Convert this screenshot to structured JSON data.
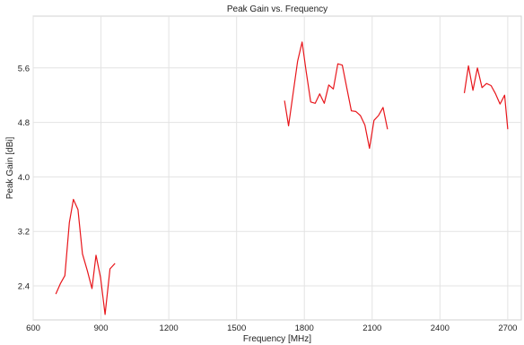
{
  "chart_data": {
    "type": "line",
    "title": "Peak Gain vs. Frequency",
    "xlabel": "Frequency [MHz]",
    "ylabel": "Peak Gain [dBi]",
    "xlim": [
      600,
      2760
    ],
    "ylim": [
      1.9,
      6.36
    ],
    "xticks": [
      600,
      900,
      1200,
      1500,
      1800,
      2100,
      2400,
      2700
    ],
    "yticks": [
      2.4,
      3.2,
      4.0,
      4.8,
      5.6
    ],
    "xtick_labels": [
      "600",
      "900",
      "1200",
      "1500",
      "1800",
      "2100",
      "2400",
      "2700"
    ],
    "ytick_labels": [
      "2.4",
      "3.2",
      "4.0",
      "4.8",
      "5.6"
    ],
    "grid": true,
    "line_color": "#e8161b",
    "series": [
      {
        "segments": [
          [
            [
              700,
              2.28
            ],
            [
              720,
              2.43
            ],
            [
              740,
              2.55
            ],
            [
              760,
              3.33
            ],
            [
              778,
              3.67
            ],
            [
              798,
              3.52
            ],
            [
              818,
              2.87
            ],
            [
              840,
              2.62
            ],
            [
              860,
              2.36
            ],
            [
              878,
              2.85
            ],
            [
              898,
              2.52
            ],
            [
              918,
              1.98
            ],
            [
              940,
              2.65
            ],
            [
              962,
              2.73
            ]
          ],
          [
            [
              1712,
              5.12
            ],
            [
              1730,
              4.75
            ],
            [
              1750,
              5.22
            ],
            [
              1770,
              5.7
            ],
            [
              1790,
              5.98
            ],
            [
              1808,
              5.55
            ],
            [
              1828,
              5.1
            ],
            [
              1848,
              5.08
            ],
            [
              1868,
              5.22
            ],
            [
              1888,
              5.08
            ],
            [
              1908,
              5.35
            ],
            [
              1928,
              5.29
            ],
            [
              1948,
              5.66
            ],
            [
              1968,
              5.64
            ],
            [
              1988,
              5.3
            ],
            [
              2008,
              4.97
            ],
            [
              2028,
              4.96
            ],
            [
              2048,
              4.9
            ],
            [
              2068,
              4.76
            ],
            [
              2088,
              4.42
            ],
            [
              2108,
              4.83
            ],
            [
              2128,
              4.9
            ],
            [
              2148,
              5.02
            ],
            [
              2168,
              4.7
            ]
          ],
          [
            [
              2508,
              5.23
            ],
            [
              2526,
              5.63
            ],
            [
              2546,
              5.27
            ],
            [
              2566,
              5.6
            ],
            [
              2586,
              5.31
            ],
            [
              2606,
              5.37
            ],
            [
              2626,
              5.34
            ],
            [
              2646,
              5.22
            ],
            [
              2666,
              5.07
            ],
            [
              2686,
              5.2
            ],
            [
              2700,
              4.7
            ]
          ]
        ]
      }
    ]
  }
}
